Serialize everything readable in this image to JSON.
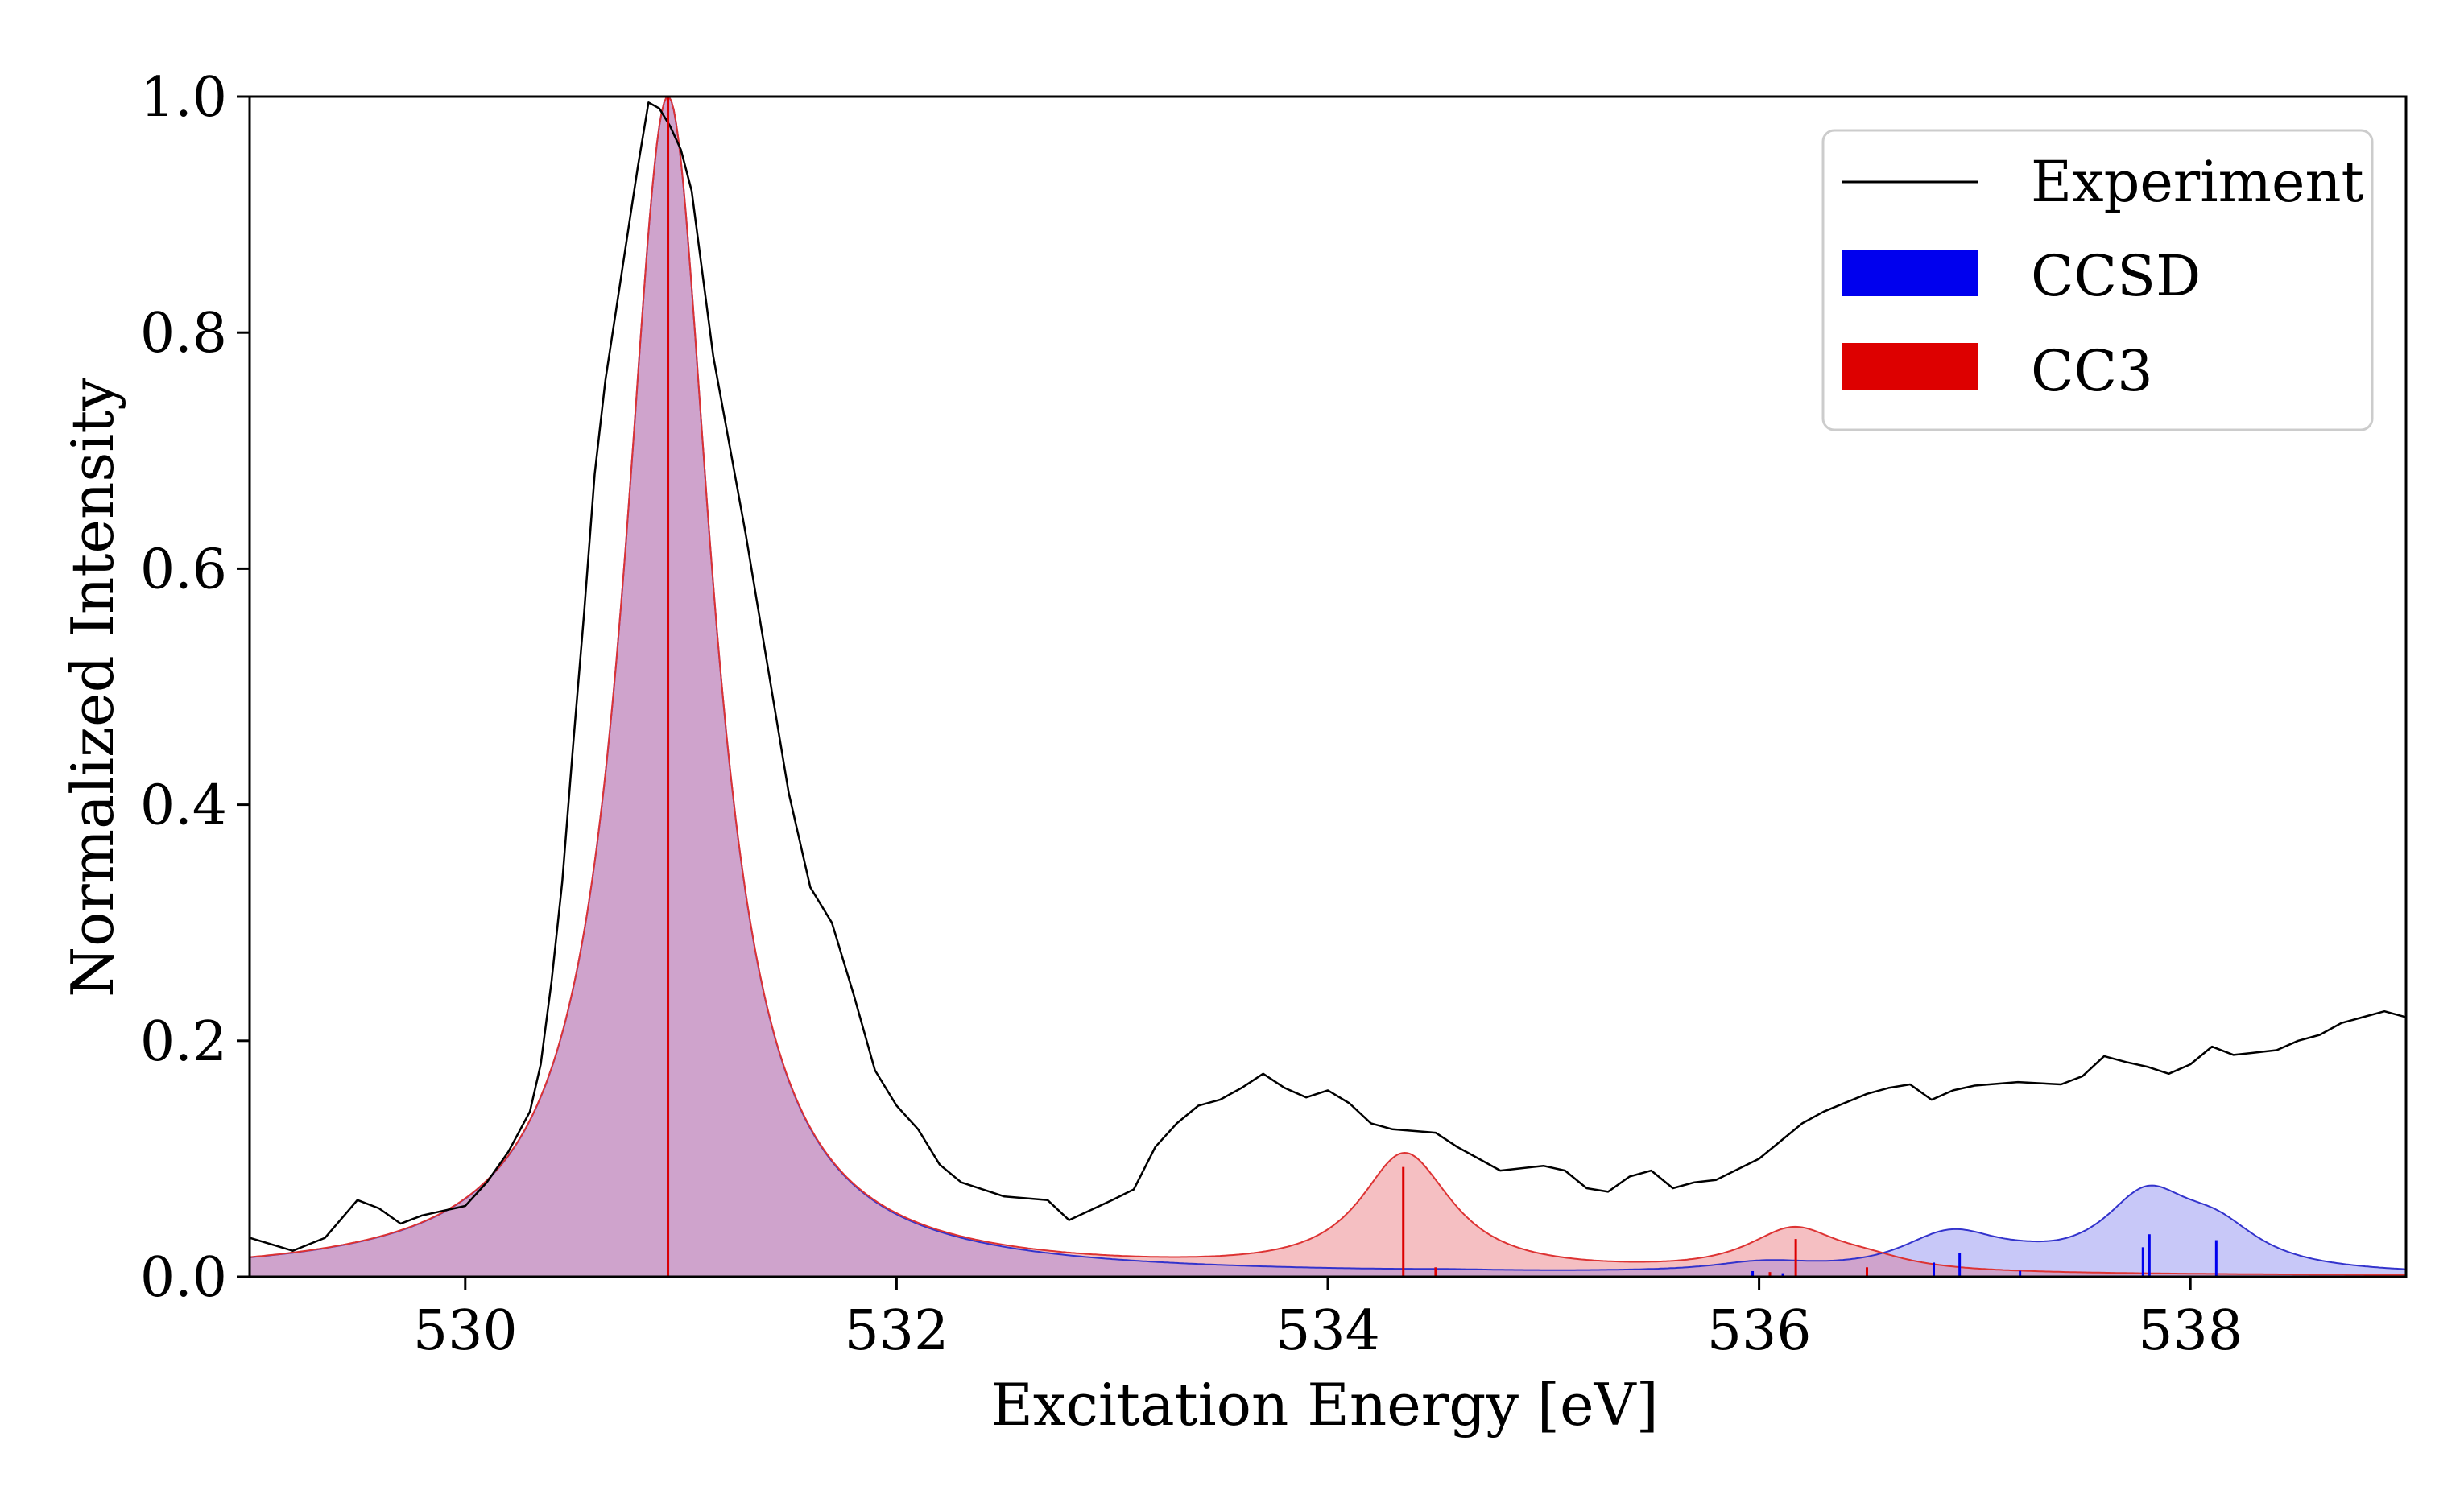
{
  "chart_data": {
    "type": "line",
    "xlabel": "Excitation Energy [eV]",
    "ylabel": "Normalized Intensity",
    "xlim": [
      529.0,
      539.0
    ],
    "ylim": [
      0.0,
      1.0
    ],
    "xticks": [
      530,
      532,
      534,
      536,
      538
    ],
    "yticks": [
      0.0,
      0.2,
      0.4,
      0.6,
      0.8,
      1.0
    ],
    "xtick_labels": [
      "530",
      "532",
      "534",
      "536",
      "538"
    ],
    "ytick_labels": [
      "0.0",
      "0.2",
      "0.4",
      "0.6",
      "0.8",
      "1.0"
    ],
    "grid": false,
    "legend_position": "top-right",
    "colors": {
      "experiment": "#000000",
      "ccsd_line": "#3333cc",
      "ccsd_fill": "#c8c8f8",
      "ccsd_stick": "#0000ee",
      "cc3_line": "#dd3333",
      "cc3_fill": "#f5bfc2",
      "cc3_stick": "#dd0000",
      "overlap_fill": "#cfa3cc",
      "overlap_line": "#aa3388"
    },
    "series": [
      {
        "name": "Experiment",
        "kind": "line",
        "x": [
          529.0,
          529.2,
          529.35,
          529.5,
          529.6,
          529.7,
          529.8,
          530.0,
          530.1,
          530.2,
          530.3,
          530.35,
          530.4,
          530.45,
          530.5,
          530.55,
          530.6,
          530.65,
          530.7,
          530.75,
          530.8,
          530.85,
          530.9,
          530.95,
          531.0,
          531.05,
          531.1,
          531.15,
          531.2,
          531.3,
          531.4,
          531.5,
          531.6,
          531.7,
          531.8,
          531.9,
          532.0,
          532.1,
          532.2,
          532.3,
          532.5,
          532.7,
          532.8,
          533.0,
          533.1,
          533.2,
          533.3,
          533.4,
          533.5,
          533.6,
          533.7,
          533.8,
          533.9,
          534.0,
          534.1,
          534.2,
          534.3,
          534.5,
          534.6,
          534.7,
          534.8,
          535.0,
          535.1,
          535.2,
          535.3,
          535.4,
          535.5,
          535.6,
          535.7,
          535.8,
          536.0,
          536.1,
          536.2,
          536.3,
          536.5,
          536.6,
          536.7,
          536.8,
          536.9,
          537.0,
          537.2,
          537.4,
          537.5,
          537.6,
          537.7,
          537.8,
          537.9,
          538.0,
          538.1,
          538.2,
          538.3,
          538.4,
          538.5,
          538.6,
          538.7,
          538.8,
          538.9,
          539.0
        ],
        "y": [
          0.033,
          0.022,
          0.033,
          0.065,
          0.058,
          0.045,
          0.052,
          0.06,
          0.08,
          0.106,
          0.14,
          0.18,
          0.25,
          0.335,
          0.45,
          0.56,
          0.68,
          0.76,
          0.82,
          0.88,
          0.94,
          0.995,
          0.99,
          0.975,
          0.955,
          0.92,
          0.85,
          0.78,
          0.73,
          0.63,
          0.52,
          0.41,
          0.33,
          0.3,
          0.24,
          0.175,
          0.145,
          0.125,
          0.095,
          0.08,
          0.068,
          0.065,
          0.048,
          0.065,
          0.074,
          0.11,
          0.13,
          0.145,
          0.15,
          0.16,
          0.172,
          0.16,
          0.152,
          0.158,
          0.147,
          0.13,
          0.125,
          0.122,
          0.11,
          0.1,
          0.09,
          0.094,
          0.09,
          0.075,
          0.072,
          0.085,
          0.09,
          0.075,
          0.08,
          0.082,
          0.1,
          0.115,
          0.13,
          0.14,
          0.155,
          0.16,
          0.163,
          0.15,
          0.158,
          0.162,
          0.165,
          0.163,
          0.17,
          0.187,
          0.182,
          0.178,
          0.172,
          0.18,
          0.195,
          0.188,
          0.19,
          0.192,
          0.2,
          0.205,
          0.215,
          0.22,
          0.225,
          0.22
        ]
      },
      {
        "name": "CCSD",
        "kind": "lorentzian_broadened_sticks",
        "gamma_ev": 0.25,
        "sticks": [
          [
            530.94,
            0.9999
          ],
          [
            534.55,
            0.0007
          ],
          [
            535.97,
            0.0048
          ],
          [
            536.11,
            0.003
          ],
          [
            536.81,
            0.012
          ],
          [
            536.93,
            0.02
          ],
          [
            537.21,
            0.005
          ],
          [
            537.78,
            0.025
          ],
          [
            537.81,
            0.036
          ],
          [
            538.12,
            0.031
          ]
        ]
      },
      {
        "name": "CC3",
        "kind": "lorentzian_broadened_sticks",
        "gamma_ev": 0.25,
        "sticks": [
          [
            530.94,
            0.9995
          ],
          [
            534.35,
            0.093
          ],
          [
            534.5,
            0.008
          ],
          [
            536.05,
            0.004
          ],
          [
            536.17,
            0.032
          ],
          [
            536.5,
            0.008
          ]
        ]
      }
    ]
  }
}
